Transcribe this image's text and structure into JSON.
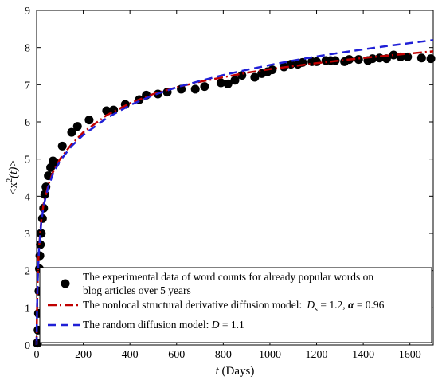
{
  "chart_data": {
    "type": "scatter",
    "xlabel": {
      "italic": "t",
      "rest": " (Days)"
    },
    "ylabel": {
      "pre": "<x",
      "sup": "2",
      "italic": "(t)",
      "post": ">"
    },
    "xlim": [
      0,
      1700
    ],
    "ylim": [
      0,
      9
    ],
    "xticks": [
      "0",
      "200",
      "400",
      "600",
      "800",
      "1000",
      "1200",
      "1400",
      "1600"
    ],
    "yticks": [
      "0",
      "1",
      "2",
      "3",
      "4",
      "5",
      "6",
      "7",
      "8",
      "9"
    ],
    "grid": false,
    "legend_position": "bottom-left",
    "series": [
      {
        "kind": "markers",
        "legend": "The experimental data of word counts for already popular words on",
        "legend_line2": "blog articles over 5 years",
        "color": "#000000",
        "x": [
          2,
          4,
          6,
          8,
          10,
          12,
          14,
          16,
          18,
          20,
          25,
          30,
          35,
          40,
          50,
          60,
          70,
          80,
          110,
          150,
          175,
          225,
          300,
          330,
          380,
          440,
          470,
          520,
          560,
          620,
          680,
          720,
          790,
          820,
          850,
          880,
          935,
          965,
          990,
          1010,
          1060,
          1090,
          1120,
          1140,
          1180,
          1200,
          1240,
          1260,
          1280,
          1320,
          1340,
          1380,
          1420,
          1440,
          1470,
          1500,
          1530,
          1560,
          1590,
          1650,
          1690
        ],
        "y": [
          0.05,
          0.05,
          0.4,
          0.85,
          1.45,
          2.05,
          2.4,
          2.7,
          3.0,
          3.0,
          3.4,
          3.68,
          4.05,
          4.25,
          4.55,
          4.77,
          4.95,
          4.9,
          5.35,
          5.72,
          5.88,
          6.05,
          6.3,
          6.32,
          6.47,
          6.6,
          6.72,
          6.75,
          6.8,
          6.88,
          6.88,
          6.95,
          7.05,
          7.02,
          7.12,
          7.25,
          7.2,
          7.3,
          7.35,
          7.4,
          7.48,
          7.55,
          7.55,
          7.6,
          7.62,
          7.62,
          7.65,
          7.65,
          7.65,
          7.62,
          7.68,
          7.68,
          7.65,
          7.7,
          7.72,
          7.7,
          7.8,
          7.75,
          7.75,
          7.72,
          7.7
        ]
      },
      {
        "kind": "line",
        "legend": "The nonlocal structural derivative diffusion model:",
        "legend_params": {
          "d": "D",
          "sub": "s",
          "d_value": " = 1.2, ",
          "alpha": "α",
          "alpha_value": " = 0.96"
        },
        "color": "#c00000",
        "x": [
          0,
          1,
          3,
          5,
          10,
          20,
          30,
          50,
          70,
          100,
          150,
          200,
          300,
          400,
          500,
          600,
          700,
          800,
          900,
          1000,
          1100,
          1200,
          1300,
          1400,
          1500,
          1600,
          1700
        ],
        "y": [
          0,
          0.6,
          1.4,
          1.85,
          2.6,
          3.35,
          3.8,
          4.3,
          4.65,
          5.0,
          5.4,
          5.72,
          6.18,
          6.5,
          6.75,
          6.93,
          7.08,
          7.2,
          7.32,
          7.42,
          7.5,
          7.58,
          7.65,
          7.72,
          7.78,
          7.84,
          7.9
        ]
      },
      {
        "kind": "line",
        "legend": "The random diffusion model: ",
        "legend_params": {
          "d": "D",
          "d_value": " = 1.1"
        },
        "color": "#1f1fd6",
        "x": [
          0,
          1,
          3,
          5,
          10,
          20,
          30,
          50,
          70,
          100,
          150,
          200,
          300,
          400,
          500,
          600,
          700,
          800,
          900,
          1000,
          1100,
          1200,
          1300,
          1400,
          1500,
          1600,
          1700
        ],
        "y": [
          0,
          0.6,
          1.35,
          1.8,
          2.55,
          3.3,
          3.75,
          4.25,
          4.6,
          4.95,
          5.35,
          5.65,
          6.1,
          6.45,
          6.72,
          6.93,
          7.1,
          7.26,
          7.4,
          7.53,
          7.65,
          7.76,
          7.86,
          7.95,
          8.04,
          8.12,
          8.2
        ]
      }
    ]
  }
}
